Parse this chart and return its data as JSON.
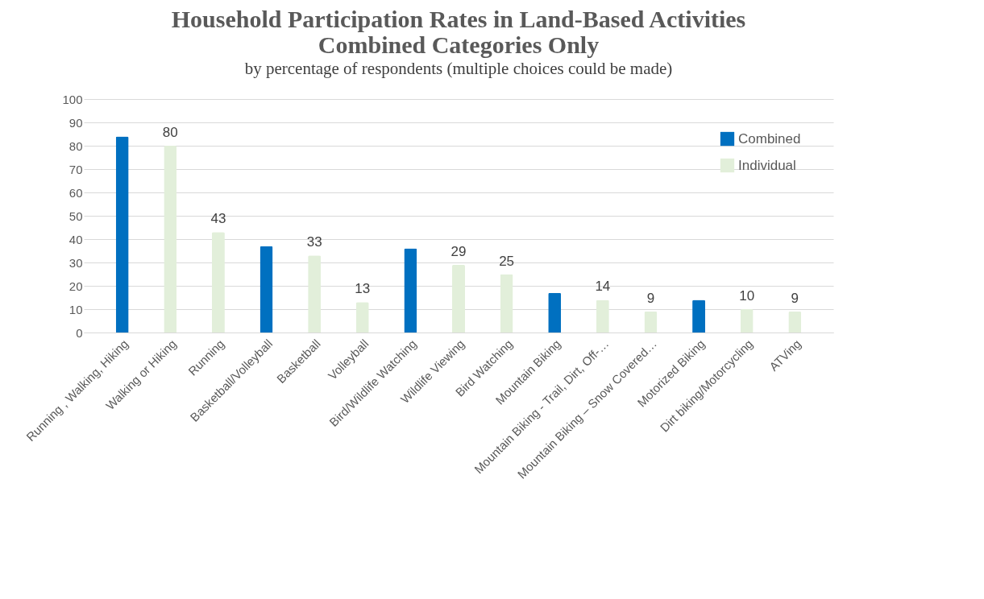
{
  "chart_data": {
    "type": "bar",
    "title": [
      "Household Participation Rates in Land-Based Activities",
      "Combined Categories Only"
    ],
    "subtitle": "by percentage of respondents (multiple choices could be made)",
    "categories": [
      "Running , Walking, Hiking",
      "Walking or Hiking",
      "Running",
      "Basketball/Volleyball",
      "Basketball",
      "Volleyball",
      "Bird/Wildlife Watching",
      "Wildlife Viewing",
      "Bird Watching",
      "Mountain Biking",
      "Mountain Biking - Trail, Dirt, Off-…",
      "Mountain Biking – Snow Covered…",
      "Motorized Biking",
      "Dirt biking/Motorcycling",
      "ATVing"
    ],
    "series": [
      {
        "name": "Combined",
        "color": "#0070c0",
        "values": [
          84,
          null,
          null,
          37,
          null,
          null,
          36,
          null,
          null,
          17,
          null,
          null,
          14,
          null,
          null
        ]
      },
      {
        "name": "Individual",
        "color": "#e2efda",
        "values": [
          null,
          80,
          43,
          null,
          33,
          13,
          null,
          29,
          25,
          null,
          14,
          9,
          null,
          10,
          9
        ],
        "value_labels": [
          null,
          "80",
          "43",
          null,
          "33",
          "13",
          null,
          "29",
          "25",
          null,
          "14",
          "9",
          null,
          "10",
          "9"
        ]
      }
    ],
    "ylim": [
      0,
      100
    ],
    "yticks": [
      0,
      10,
      20,
      30,
      40,
      50,
      60,
      70,
      80,
      90,
      100
    ],
    "grid": "y",
    "legend": "top right"
  }
}
